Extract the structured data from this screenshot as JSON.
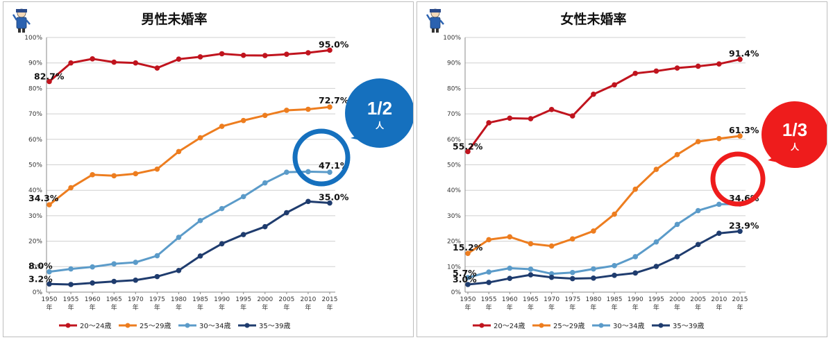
{
  "chart_data": [
    {
      "type": "line",
      "title": "男性未婚率",
      "categories": [
        "1950年",
        "1955年",
        "1960年",
        "1965年",
        "1970年",
        "1975年",
        "1980年",
        "1985年",
        "1990年",
        "1995年",
        "2000年",
        "2005年",
        "2010年",
        "2015年"
      ],
      "x_years": [
        "1950",
        "1955",
        "1960",
        "1965",
        "1970",
        "1975",
        "1980",
        "1985",
        "1990",
        "1995",
        "2000",
        "2005",
        "2010",
        "2015"
      ],
      "x_suffix": "年",
      "ylim": [
        0,
        100
      ],
      "yticks": [
        "0%",
        "10%",
        "20%",
        "30%",
        "40%",
        "50%",
        "60%",
        "70%",
        "80%",
        "90%",
        "100%"
      ],
      "grid": true,
      "legend_position": "bottom",
      "series": [
        {
          "name": "20～24歳",
          "color": "#c0141e",
          "values": [
            82.7,
            90.0,
            91.6,
            90.3,
            90.0,
            88.0,
            91.5,
            92.4,
            93.6,
            93.0,
            92.9,
            93.4,
            94.0,
            95.0
          ]
        },
        {
          "name": "25～29歳",
          "color": "#ed7d1f",
          "values": [
            34.3,
            41.0,
            46.1,
            45.7,
            46.5,
            48.3,
            55.2,
            60.6,
            65.1,
            67.4,
            69.4,
            71.4,
            71.8,
            72.7
          ]
        },
        {
          "name": "30～34歳",
          "color": "#5b9bc9",
          "values": [
            8.0,
            9.1,
            9.9,
            11.1,
            11.7,
            14.3,
            21.5,
            28.1,
            32.8,
            37.5,
            42.9,
            47.1,
            47.3,
            47.1
          ]
        },
        {
          "name": "35～39歳",
          "color": "#1f3c6e",
          "values": [
            3.2,
            3.0,
            3.6,
            4.2,
            4.7,
            6.1,
            8.5,
            14.2,
            19.0,
            22.6,
            25.7,
            31.2,
            35.6,
            35.0
          ]
        }
      ],
      "annotations": [
        {
          "text": "82.7%",
          "series": 0,
          "index": 0
        },
        {
          "text": "95.0%",
          "series": 0,
          "index": 13
        },
        {
          "text": "34.3%",
          "series": 1,
          "index": 0
        },
        {
          "text": "72.7%",
          "series": 1,
          "index": 13
        },
        {
          "text": "8.0%",
          "series": 2,
          "index": 0
        },
        {
          "text": "47.1%",
          "series": 2,
          "index": 13
        },
        {
          "text": "3.2%",
          "series": 3,
          "index": 0
        },
        {
          "text": "35.0%",
          "series": 3,
          "index": 13
        }
      ],
      "callout": {
        "fraction": "1/2",
        "unit": "人",
        "color": "#1570be",
        "highlight": "47.1%"
      }
    },
    {
      "type": "line",
      "title": "女性未婚率",
      "categories": [
        "1950年",
        "1955年",
        "1960年",
        "1965年",
        "1970年",
        "1975年",
        "1980年",
        "1985年",
        "1990年",
        "1995年",
        "2000年",
        "2005年",
        "2010年",
        "2015年"
      ],
      "x_years": [
        "1950",
        "1955",
        "1960",
        "1965",
        "1970",
        "1975",
        "1980",
        "1985",
        "1990",
        "1995",
        "2000",
        "2005",
        "2010",
        "2015"
      ],
      "x_suffix": "年",
      "ylim": [
        0,
        100
      ],
      "yticks": [
        "0%",
        "10%",
        "20%",
        "30%",
        "40%",
        "50%",
        "60%",
        "70%",
        "80%",
        "90%",
        "100%"
      ],
      "grid": true,
      "legend_position": "bottom",
      "series": [
        {
          "name": "20～24歳",
          "color": "#c0141e",
          "values": [
            55.2,
            66.5,
            68.3,
            68.1,
            71.7,
            69.2,
            77.7,
            81.4,
            85.9,
            86.8,
            88.0,
            88.7,
            89.6,
            91.4
          ]
        },
        {
          "name": "25～29歳",
          "color": "#ed7d1f",
          "values": [
            15.2,
            20.6,
            21.7,
            19.0,
            18.1,
            20.9,
            24.0,
            30.6,
            40.4,
            48.2,
            54.0,
            59.1,
            60.3,
            61.3
          ]
        },
        {
          "name": "30～34歳",
          "color": "#5b9bc9",
          "values": [
            5.7,
            7.9,
            9.4,
            9.0,
            7.2,
            7.7,
            9.1,
            10.4,
            13.9,
            19.7,
            26.6,
            32.0,
            34.5,
            34.6
          ]
        },
        {
          "name": "35～39歳",
          "color": "#1f3c6e",
          "values": [
            3.0,
            3.8,
            5.4,
            6.8,
            5.8,
            5.3,
            5.5,
            6.6,
            7.5,
            10.1,
            13.9,
            18.7,
            23.1,
            23.9
          ]
        }
      ],
      "annotations": [
        {
          "text": "55.2%",
          "series": 0,
          "index": 0
        },
        {
          "text": "91.4%",
          "series": 0,
          "index": 13
        },
        {
          "text": "15.2%",
          "series": 1,
          "index": 0
        },
        {
          "text": "61.3%",
          "series": 1,
          "index": 13
        },
        {
          "text": "5.7%",
          "series": 2,
          "index": 0
        },
        {
          "text": "34.6%",
          "series": 2,
          "index": 13
        },
        {
          "text": "3.0%",
          "series": 3,
          "index": 0
        },
        {
          "text": "23.9%",
          "series": 3,
          "index": 13
        }
      ],
      "callout": {
        "fraction": "1/3",
        "unit": "人",
        "color": "#ee1c1c",
        "highlight": "34.6%"
      }
    }
  ]
}
